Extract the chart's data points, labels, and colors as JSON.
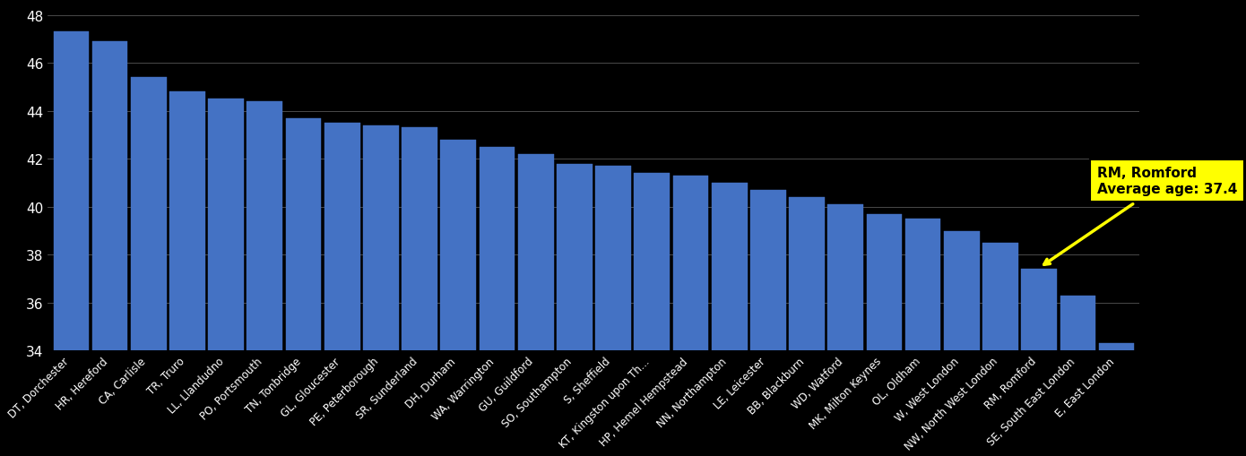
{
  "categories": [
    "DT, Dorchester",
    "HR, Hereford",
    "CA, Carlisle",
    "TR, Truro",
    "LL, Llandudno",
    "PO, Portsmouth",
    "TN, Tonbridge",
    "GL, Gloucester",
    "PE, Peterborough",
    "SR, Sunderland",
    "DH, Durham",
    "WA, Warrington",
    "GU, Guildford",
    "SO, Southampton",
    "S, Sheffield",
    "KT, Kingston upon Th...",
    "HP, Hemel Hempstead",
    "NN, Northampton",
    "LE, Leicester",
    "BB, Blackburn",
    "WD, Watford",
    "MK, Milton Keynes",
    "OL, Oldham",
    "W, West London",
    "NW, North West London",
    "SE, South East London",
    "E, East London"
  ],
  "values": [
    47.3,
    46.9,
    45.4,
    44.8,
    44.5,
    44.4,
    43.7,
    43.5,
    43.4,
    43.3,
    42.8,
    42.5,
    42.2,
    41.8,
    41.7,
    41.4,
    41.3,
    41.0,
    40.7,
    40.4,
    40.1,
    39.7,
    39.5,
    39.0,
    38.5,
    36.3,
    34.3
  ],
  "all_categories": [
    "DT, Dorchester",
    "HR, Hereford",
    "CA, Carlisle",
    "TR, Truro",
    "LL, Llandudno",
    "PO, Portsmouth",
    "TN, Tonbridge",
    "GL, Gloucester",
    "PE, Peterborough",
    "SR, Sunderland",
    "DH, Durham",
    "WA, Warrington",
    "GU, Guildford",
    "SO, Southampton",
    "S, Sheffield",
    "KT, Kingston upon Th...",
    "HP, Hemel Hempstead",
    "NN, Northampton",
    "LE, Leicester",
    "BB, Blackburn",
    "WD, Watford",
    "MK, Milton Keynes",
    "OL, Oldham",
    "W, West London",
    "NW, North West London",
    "RM, Romford",
    "SE, South East London",
    "E, East London"
  ],
  "all_values": [
    47.3,
    46.9,
    45.4,
    44.8,
    44.5,
    44.4,
    43.7,
    43.5,
    43.4,
    43.3,
    42.8,
    42.5,
    42.2,
    41.8,
    41.7,
    41.4,
    41.3,
    41.0,
    40.7,
    40.4,
    40.1,
    39.7,
    39.5,
    39.0,
    38.5,
    37.4,
    36.3,
    34.3
  ],
  "bar_color": "#4472C4",
  "highlight_label": "RM, Romford",
  "highlight_value": 37.4,
  "annotation_text": "RM, Romford\nAverage age: 37.4",
  "background_color": "#000000",
  "text_color": "#FFFFFF",
  "grid_color": "#888888",
  "ylim_min": 34,
  "ylim_max": 48.5,
  "yticks": [
    34,
    36,
    38,
    40,
    42,
    44,
    46,
    48
  ]
}
